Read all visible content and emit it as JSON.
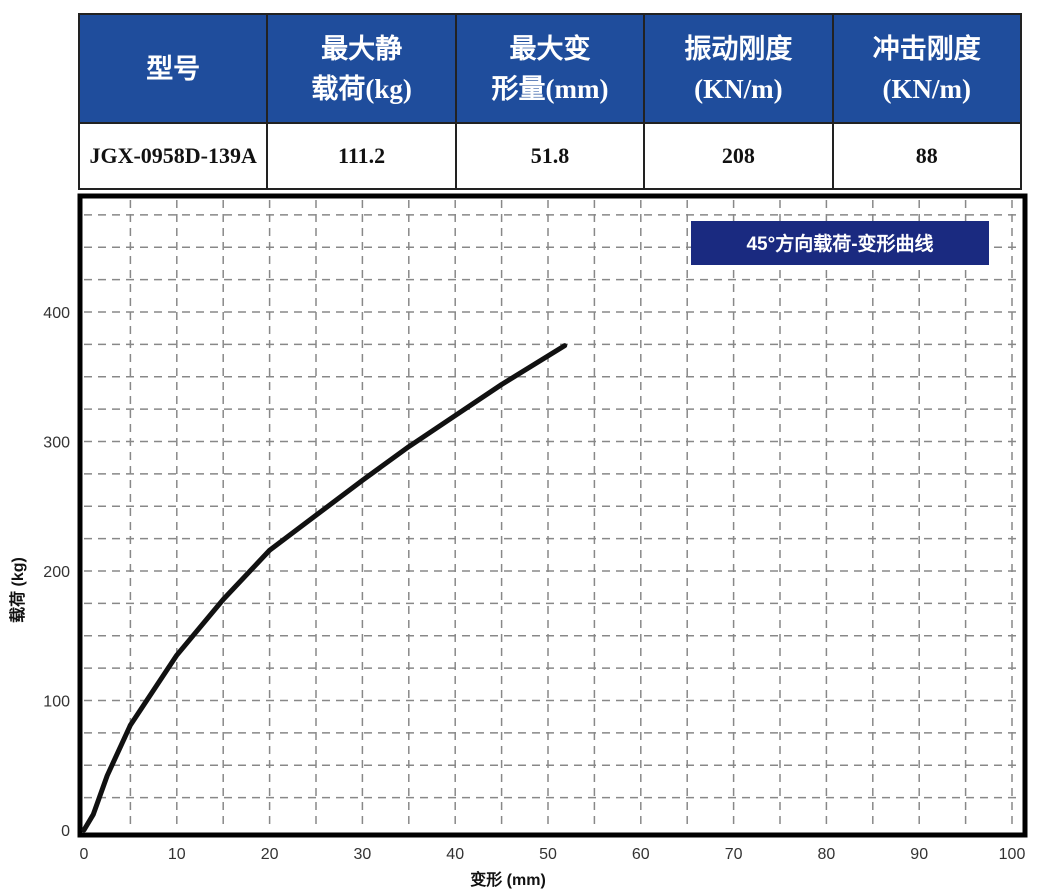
{
  "table": {
    "header": [
      [
        "型号"
      ],
      [
        "最大静",
        "载荷(kg)"
      ],
      [
        "最大变",
        "形量(mm)"
      ],
      [
        "振动刚度",
        "(KN/m)"
      ],
      [
        "冲击刚度",
        "(KN/m)"
      ]
    ],
    "rows": [
      [
        "JGX-0958D-139A",
        "111.2",
        "51.8",
        "208",
        "88"
      ]
    ]
  },
  "chart_data": {
    "type": "line",
    "title": "45°方向载荷-变形曲线",
    "x_label": "变形 (mm)",
    "y_label": "载荷 (kg)",
    "x": [
      0,
      1,
      2.5,
      5,
      10,
      15,
      20,
      25,
      30,
      35,
      40,
      45,
      51.8
    ],
    "series": [
      {
        "name": "载荷",
        "color": "#111111",
        "values": [
          0,
          12,
          42,
          81,
          135,
          178,
          216,
          243,
          270,
          296,
          320,
          344,
          374
        ]
      }
    ],
    "xlim": [
      0,
      100
    ],
    "ylim": [
      0,
      487
    ],
    "xticks": [
      0,
      10,
      20,
      30,
      40,
      50,
      60,
      70,
      80,
      90,
      100
    ],
    "yticks": [
      0,
      100,
      200,
      300,
      400
    ],
    "xgrid": [
      5,
      10,
      15,
      20,
      25,
      30,
      35,
      40,
      45,
      50,
      55,
      60,
      65,
      70,
      75,
      80,
      85,
      90,
      95,
      100
    ],
    "ygrid": [
      25,
      50,
      75,
      100,
      125,
      150,
      175,
      200,
      225,
      250,
      275,
      300,
      325,
      350,
      375,
      400,
      425,
      450,
      475
    ],
    "grid": true,
    "title_box_color": "#1a2a80"
  }
}
